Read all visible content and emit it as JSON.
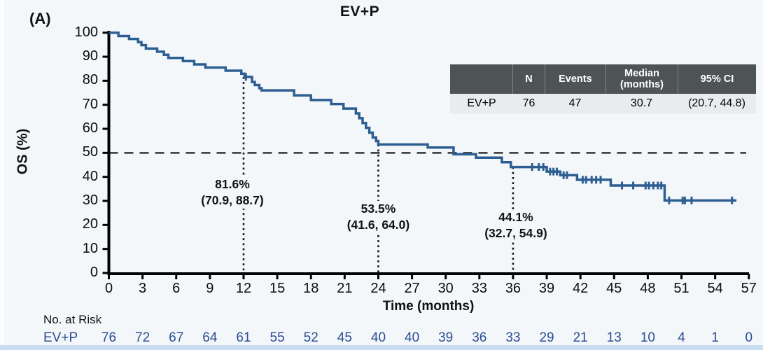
{
  "panel_label": "(A)",
  "title": "EV+P",
  "chart_data": {
    "type": "line",
    "subtype": "kaplan-meier-step",
    "title": "EV+P",
    "xlabel": "Time (months)",
    "ylabel": "OS (%)",
    "xlim": [
      0,
      57
    ],
    "ylim": [
      0,
      100
    ],
    "x_ticks": [
      0,
      3,
      6,
      9,
      12,
      15,
      18,
      21,
      24,
      27,
      30,
      33,
      36,
      39,
      42,
      45,
      48,
      51,
      54,
      57
    ],
    "y_ticks": [
      0,
      10,
      20,
      30,
      40,
      50,
      60,
      70,
      80,
      90,
      100
    ],
    "grid": false,
    "reference_line_y": 50,
    "series": [
      {
        "name": "EV+P",
        "color": "#2d5e92",
        "median_months": 30.7,
        "steps": [
          [
            0,
            100
          ],
          [
            0.85,
            98.6
          ],
          [
            1.8,
            97.4
          ],
          [
            2.6,
            96.1
          ],
          [
            2.9,
            94.8
          ],
          [
            3.3,
            93.4
          ],
          [
            4.3,
            92.1
          ],
          [
            4.9,
            90.8
          ],
          [
            5.3,
            89.5
          ],
          [
            6.6,
            88.2
          ],
          [
            7.6,
            86.8
          ],
          [
            8.6,
            85.5
          ],
          [
            10.4,
            84.2
          ],
          [
            11.8,
            82.9
          ],
          [
            12.1,
            81.6
          ],
          [
            12.75,
            79.5
          ],
          [
            13.0,
            78.2
          ],
          [
            13.4,
            76.9
          ],
          [
            13.6,
            76.0
          ],
          [
            16.5,
            73.9
          ],
          [
            18.0,
            72.0
          ],
          [
            19.8,
            70.3
          ],
          [
            20.9,
            68.4
          ],
          [
            22.0,
            66.4
          ],
          [
            22.3,
            64.4
          ],
          [
            22.6,
            62.4
          ],
          [
            22.9,
            60.4
          ],
          [
            23.2,
            58.4
          ],
          [
            23.5,
            56.4
          ],
          [
            23.8,
            54.9
          ],
          [
            24.0,
            53.5
          ],
          [
            28.4,
            52.2
          ],
          [
            30.7,
            49.4
          ],
          [
            32.7,
            48.0
          ],
          [
            35.0,
            46.1
          ],
          [
            35.8,
            44.1
          ],
          [
            39.0,
            42.2
          ],
          [
            40.2,
            40.7
          ],
          [
            41.7,
            38.8
          ],
          [
            44.7,
            36.4
          ],
          [
            49.5,
            30.2
          ]
        ],
        "end_time": 55.9,
        "censor_marks": [
          [
            12.2,
            81.6
          ],
          [
            37.7,
            44.1
          ],
          [
            38.3,
            44.1
          ],
          [
            38.7,
            44.1
          ],
          [
            39.3,
            42.2
          ],
          [
            39.6,
            42.2
          ],
          [
            39.9,
            42.2
          ],
          [
            40.5,
            40.7
          ],
          [
            40.8,
            40.7
          ],
          [
            42.2,
            38.8
          ],
          [
            42.5,
            38.8
          ],
          [
            43.0,
            38.8
          ],
          [
            43.4,
            38.8
          ],
          [
            43.8,
            38.8
          ],
          [
            45.7,
            36.4
          ],
          [
            46.7,
            36.4
          ],
          [
            47.8,
            36.4
          ],
          [
            48.1,
            36.4
          ],
          [
            48.5,
            36.4
          ],
          [
            48.9,
            36.4
          ],
          [
            49.2,
            36.4
          ],
          [
            49.9,
            30.2
          ],
          [
            51.1,
            30.2
          ],
          [
            51.3,
            30.2
          ],
          [
            51.9,
            30.2
          ],
          [
            55.5,
            30.2
          ]
        ]
      }
    ],
    "annotations": [
      {
        "time": 12,
        "value_pct": "81.6%",
        "ci": "(70.9, 88.7)"
      },
      {
        "time": 24,
        "value_pct": "53.5%",
        "ci": "(41.6, 64.0)"
      },
      {
        "time": 36,
        "value_pct": "44.1%",
        "ci": "(32.7, 54.9)"
      }
    ]
  },
  "inset_table": {
    "headers": [
      "",
      "N",
      "Events",
      "Median\n(months)",
      "95% CI"
    ],
    "rows": [
      [
        "EV+P",
        "76",
        "47",
        "30.7",
        "(20.7, 44.8)"
      ]
    ]
  },
  "risk_table": {
    "caption": "No. at Risk",
    "color": "#2b4d93",
    "rows": [
      {
        "label": "EV+P",
        "counts": [
          "76",
          "72",
          "67",
          "64",
          "61",
          "55",
          "52",
          "45",
          "40",
          "40",
          "39",
          "36",
          "33",
          "29",
          "21",
          "13",
          "10",
          "4",
          "1",
          "0"
        ]
      }
    ]
  }
}
